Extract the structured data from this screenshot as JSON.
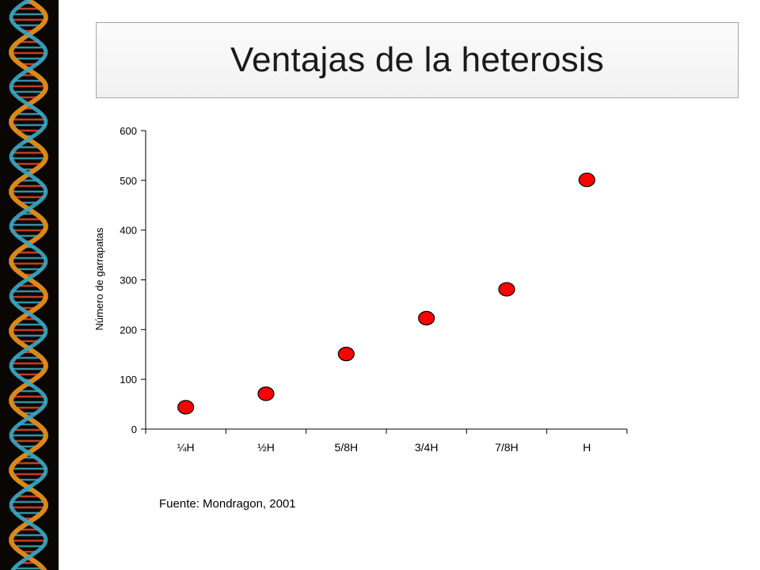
{
  "slide": {
    "title": "Ventajas de la heterosis",
    "source": "Fuente: Mondragon, 2001"
  },
  "colors": {
    "marker_fill": "#ff0000",
    "marker_stroke": "#000000",
    "dna_background": "#0a0604",
    "dna_strand_a": "#d9881a",
    "dna_strand_b": "#3aa9c4",
    "dna_rung": "#e04a28"
  },
  "chart_data": {
    "type": "scatter",
    "title": "",
    "xlabel": "",
    "ylabel": "Número de garrapatas",
    "categories": [
      "¼H",
      "½H",
      "5/8H",
      "3/4H",
      "7/8H",
      "H"
    ],
    "values": [
      44,
      71,
      151,
      223,
      281,
      501
    ],
    "ylim": [
      0,
      600
    ],
    "yticks": [
      0,
      100,
      200,
      300,
      400,
      500,
      600
    ],
    "grid": false,
    "legend": "none"
  }
}
